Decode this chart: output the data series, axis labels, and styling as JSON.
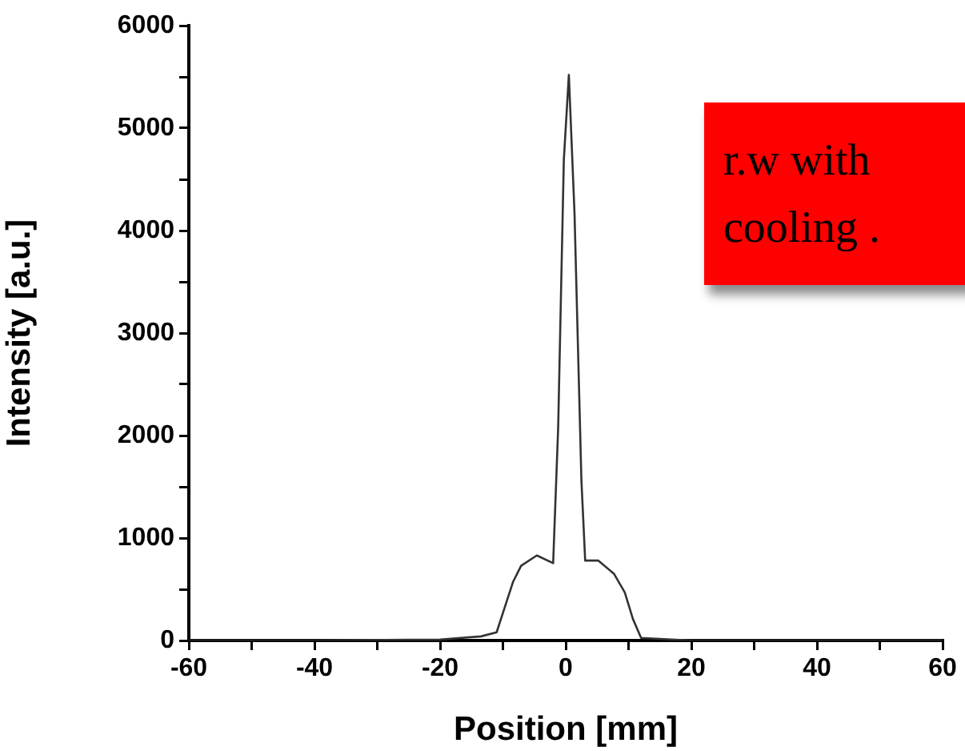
{
  "chart_data": {
    "type": "line",
    "xlabel": "Position [mm]",
    "ylabel": "Intensity [a.u.]",
    "annotations": [
      "r.w with cooling ."
    ],
    "series": [
      {
        "color": "#333333",
        "x": [
          -60,
          -40,
          -20,
          -13.5,
          -11,
          -8.4,
          -7.1,
          -4.6,
          -2,
          -1.2,
          -0.3,
          0.5,
          1.4,
          2.5,
          3.1,
          5.2,
          7.7,
          9.4,
          10.7,
          12,
          20,
          40,
          60
        ],
        "values": [
          0,
          0,
          10,
          40,
          80,
          570,
          730,
          830,
          755,
          2080,
          4690,
          5520,
          4170,
          1560,
          780,
          780,
          650,
          470,
          210,
          25,
          0,
          0,
          0
        ]
      }
    ],
    "xlim": [
      -60,
      60
    ],
    "xticks": [
      -60,
      {
        "value": -50,
        "label": null
      },
      -40,
      {
        "value": -30,
        "label": null
      },
      -20,
      {
        "value": -10,
        "label": null
      },
      0,
      {
        "value": 10,
        "label": null
      },
      20,
      {
        "value": 30,
        "label": null
      },
      40,
      {
        "value": 50,
        "label": null
      },
      60
    ],
    "ylim": [
      0,
      6000
    ],
    "yticks": [
      0,
      {
        "value": 500,
        "label": null
      },
      1000,
      {
        "value": 1500,
        "label": null
      },
      2000,
      {
        "value": 2500,
        "label": null
      },
      3000,
      {
        "value": 3500,
        "label": null
      },
      4000,
      {
        "value": 4500,
        "label": null
      },
      5000,
      {
        "value": 5500,
        "label": null
      },
      6000
    ],
    "grid": false,
    "legend": false,
    "marker": "none",
    "line_style": "solid"
  }
}
